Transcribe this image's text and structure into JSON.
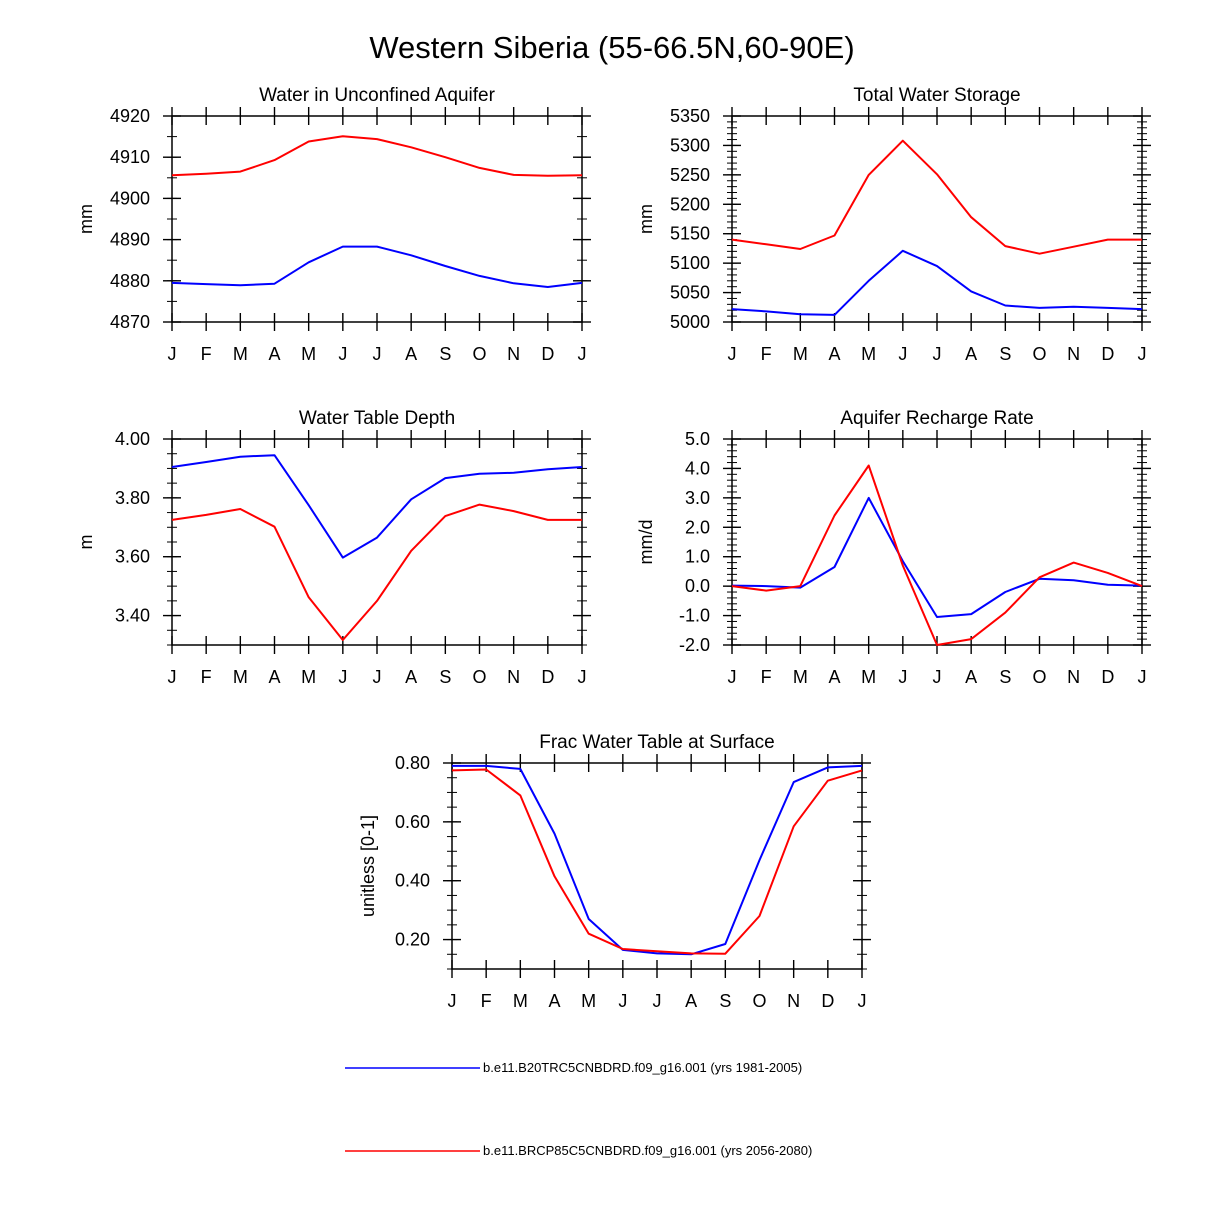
{
  "figure_title": "Western Siberia (55-66.5N,60-90E)",
  "colors": {
    "historical": "#0000ff",
    "future": "#ff0000",
    "axes": "#000000"
  },
  "legend": [
    {
      "series_key": "historical",
      "label": "b.e11.B20TRC5CNBDRD.f09_g16.001 (yrs 1981-2005)"
    },
    {
      "series_key": "future",
      "label": "b.e11.BRCP85C5CNBDRD.f09_g16.001 (yrs 2056-2080)"
    }
  ],
  "chart_data": [
    {
      "id": "unconfined-aquifer",
      "type": "line",
      "title": "Water in Unconfined Aquifer",
      "xlabel": "",
      "ylabel": "mm",
      "categories": [
        "J",
        "F",
        "M",
        "A",
        "M",
        "J",
        "J",
        "A",
        "S",
        "O",
        "N",
        "D",
        "J"
      ],
      "ylim": [
        4870,
        4920
      ],
      "yticks": [
        4870,
        4880,
        4890,
        4900,
        4910,
        4920
      ],
      "ytick_labels": [
        "4870",
        "4880",
        "4890",
        "4900",
        "4910",
        "4920"
      ],
      "yminor": 2,
      "series": [
        {
          "key": "historical",
          "name": "b.e11.B20TRC5CNBDRD.f09_g16.001 (yrs 1981-2005)",
          "values": [
            4879.5,
            4879.2,
            4878.9,
            4879.3,
            4884.5,
            4888.3,
            4888.3,
            4886.2,
            4883.6,
            4881.2,
            4879.4,
            4878.5,
            4879.5
          ]
        },
        {
          "key": "future",
          "name": "b.e11.BRCP85C5CNBDRD.f09_g16.001 (yrs 2056-2080)",
          "values": [
            4905.6,
            4906.0,
            4906.5,
            4909.3,
            4913.8,
            4915.1,
            4914.4,
            4912.4,
            4910.0,
            4907.4,
            4905.7,
            4905.5,
            4905.6
          ]
        }
      ]
    },
    {
      "id": "total-water-storage",
      "type": "line",
      "title": "Total Water Storage",
      "xlabel": "",
      "ylabel": "mm",
      "categories": [
        "J",
        "F",
        "M",
        "A",
        "M",
        "J",
        "J",
        "A",
        "S",
        "O",
        "N",
        "D",
        "J"
      ],
      "ylim": [
        5000,
        5350
      ],
      "yticks": [
        5000,
        5050,
        5100,
        5150,
        5200,
        5250,
        5300,
        5350
      ],
      "ytick_labels": [
        "5000",
        "5050",
        "5100",
        "5150",
        "5200",
        "5250",
        "5300",
        "5350"
      ],
      "yminor": 5,
      "series": [
        {
          "key": "historical",
          "name": "b.e11.B20TRC5CNBDRD.f09_g16.001 (yrs 1981-2005)",
          "values": [
            5022,
            5018,
            5013,
            5012,
            5070,
            5121,
            5095,
            5052,
            5028,
            5024,
            5026,
            5024,
            5022
          ]
        },
        {
          "key": "future",
          "name": "b.e11.BRCP85C5CNBDRD.f09_g16.001 (yrs 2056-2080)",
          "values": [
            5140,
            5132,
            5124,
            5147,
            5250,
            5308,
            5251,
            5178,
            5129,
            5116,
            5128,
            5140,
            5140
          ]
        }
      ]
    },
    {
      "id": "water-table-depth",
      "type": "line",
      "title": "Water Table Depth",
      "xlabel": "",
      "ylabel": "m",
      "categories": [
        "J",
        "F",
        "M",
        "A",
        "M",
        "J",
        "J",
        "A",
        "S",
        "O",
        "N",
        "D",
        "J"
      ],
      "ylim": [
        3.3,
        4.0
      ],
      "yticks": [
        3.4,
        3.6,
        3.8,
        4.0
      ],
      "ytick_labels": [
        "3.40",
        "3.60",
        "3.80",
        "4.00"
      ],
      "yminor": 4,
      "series": [
        {
          "key": "historical",
          "name": "b.e11.B20TRC5CNBDRD.f09_g16.001 (yrs 1981-2005)",
          "values": [
            3.905,
            3.922,
            3.94,
            3.945,
            3.775,
            3.597,
            3.665,
            3.795,
            3.867,
            3.882,
            3.885,
            3.897,
            3.905
          ]
        },
        {
          "key": "future",
          "name": "b.e11.BRCP85C5CNBDRD.f09_g16.001 (yrs 2056-2080)",
          "values": [
            3.725,
            3.742,
            3.762,
            3.702,
            3.462,
            3.317,
            3.45,
            3.62,
            3.738,
            3.777,
            3.755,
            3.725,
            3.725
          ]
        }
      ]
    },
    {
      "id": "aquifer-recharge-rate",
      "type": "line",
      "title": "Aquifer Recharge Rate",
      "xlabel": "",
      "ylabel": "mm/d",
      "categories": [
        "J",
        "F",
        "M",
        "A",
        "M",
        "J",
        "J",
        "A",
        "S",
        "O",
        "N",
        "D",
        "J"
      ],
      "ylim": [
        -2.0,
        5.0
      ],
      "yticks": [
        -2.0,
        -1.0,
        0.0,
        1.0,
        2.0,
        3.0,
        4.0,
        5.0
      ],
      "ytick_labels": [
        "-2.0",
        "-1.0",
        "0.0",
        "1.0",
        "2.0",
        "3.0",
        "4.0",
        "5.0"
      ],
      "yminor": 5,
      "series": [
        {
          "key": "historical",
          "name": "b.e11.B20TRC5CNBDRD.f09_g16.001 (yrs 1981-2005)",
          "values": [
            0.02,
            0.0,
            -0.05,
            0.65,
            3.0,
            0.85,
            -1.05,
            -0.95,
            -0.2,
            0.25,
            0.2,
            0.05,
            0.02
          ]
        },
        {
          "key": "future",
          "name": "b.e11.BRCP85C5CNBDRD.f09_g16.001 (yrs 2056-2080)",
          "values": [
            0.0,
            -0.15,
            0.0,
            2.4,
            4.1,
            0.7,
            -2.0,
            -1.8,
            -0.9,
            0.3,
            0.8,
            0.45,
            0.0
          ]
        }
      ]
    },
    {
      "id": "frac-water-table",
      "type": "line",
      "title": "Frac Water Table at Surface",
      "xlabel": "",
      "ylabel": "unitless [0-1]",
      "categories": [
        "J",
        "F",
        "M",
        "A",
        "M",
        "J",
        "J",
        "A",
        "S",
        "O",
        "N",
        "D",
        "J"
      ],
      "ylim": [
        0.1,
        0.8
      ],
      "yticks": [
        0.2,
        0.4,
        0.6,
        0.8
      ],
      "ytick_labels": [
        "0.20",
        "0.40",
        "0.60",
        "0.80"
      ],
      "yminor": 4,
      "series": [
        {
          "key": "historical",
          "name": "b.e11.B20TRC5CNBDRD.f09_g16.001 (yrs 1981-2005)",
          "values": [
            0.79,
            0.79,
            0.78,
            0.56,
            0.27,
            0.165,
            0.153,
            0.15,
            0.185,
            0.47,
            0.735,
            0.785,
            0.79
          ]
        },
        {
          "key": "future",
          "name": "b.e11.BRCP85C5CNBDRD.f09_g16.001 (yrs 2056-2080)",
          "values": [
            0.775,
            0.778,
            0.69,
            0.415,
            0.22,
            0.168,
            0.16,
            0.153,
            0.152,
            0.28,
            0.585,
            0.74,
            0.775
          ]
        }
      ]
    }
  ]
}
